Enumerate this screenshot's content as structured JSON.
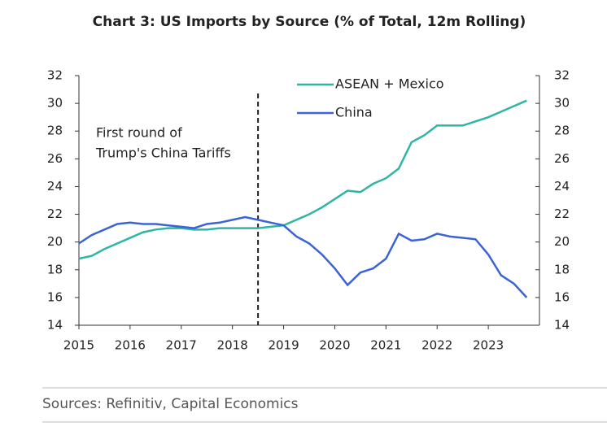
{
  "chart_data": {
    "type": "line",
    "title": "Chart 3: US Imports by Source (% of Total, 12m Rolling)",
    "source": "Sources: Refinitiv, Capital Economics",
    "annotation": [
      "First round of",
      "Trump's China Tariffs"
    ],
    "vline_x": 2018.5,
    "x": [
      2015,
      2015.25,
      2015.5,
      2015.75,
      2016,
      2016.25,
      2016.5,
      2016.75,
      2017,
      2017.25,
      2017.5,
      2017.75,
      2018,
      2018.25,
      2018.5,
      2018.75,
      2019,
      2019.25,
      2019.5,
      2019.75,
      2020,
      2020.25,
      2020.5,
      2020.75,
      2021,
      2021.25,
      2021.5,
      2021.75,
      2022,
      2022.25,
      2022.5,
      2022.75,
      2023,
      2023.25,
      2023.5,
      2023.75
    ],
    "series": [
      {
        "name": "ASEAN + Mexico",
        "color": "#2db6a3",
        "values": [
          18.8,
          19.0,
          19.5,
          19.9,
          20.3,
          20.7,
          20.9,
          21.0,
          21.0,
          20.9,
          20.9,
          21.0,
          21.0,
          21.0,
          21.0,
          21.1,
          21.2,
          21.6,
          22.0,
          22.5,
          23.1,
          23.7,
          23.6,
          24.2,
          24.6,
          25.3,
          27.2,
          27.7,
          28.4,
          28.4,
          28.4,
          28.7,
          29.0,
          29.4,
          29.8,
          30.2
        ]
      },
      {
        "name": "China",
        "color": "#3b63d6",
        "values": [
          19.9,
          20.5,
          20.9,
          21.3,
          21.4,
          21.3,
          21.3,
          21.2,
          21.1,
          21.0,
          21.3,
          21.4,
          21.6,
          21.8,
          21.6,
          21.4,
          21.2,
          20.4,
          19.9,
          19.1,
          18.1,
          16.9,
          17.8,
          18.1,
          18.8,
          20.6,
          20.1,
          20.2,
          20.6,
          20.4,
          20.3,
          20.2,
          19.1,
          17.6,
          17.0,
          16.0
        ]
      }
    ],
    "xlim": [
      2015,
      2024
    ],
    "xticks": [
      2015,
      2016,
      2017,
      2018,
      2019,
      2020,
      2021,
      2022,
      2023
    ],
    "ylim": [
      14,
      32
    ],
    "yticks": [
      14,
      16,
      18,
      20,
      22,
      24,
      26,
      28,
      30,
      32
    ],
    "y2lim": [
      14,
      32
    ],
    "y2ticks": [
      14,
      16,
      18,
      20,
      22,
      24,
      26,
      28,
      30,
      32
    ]
  }
}
